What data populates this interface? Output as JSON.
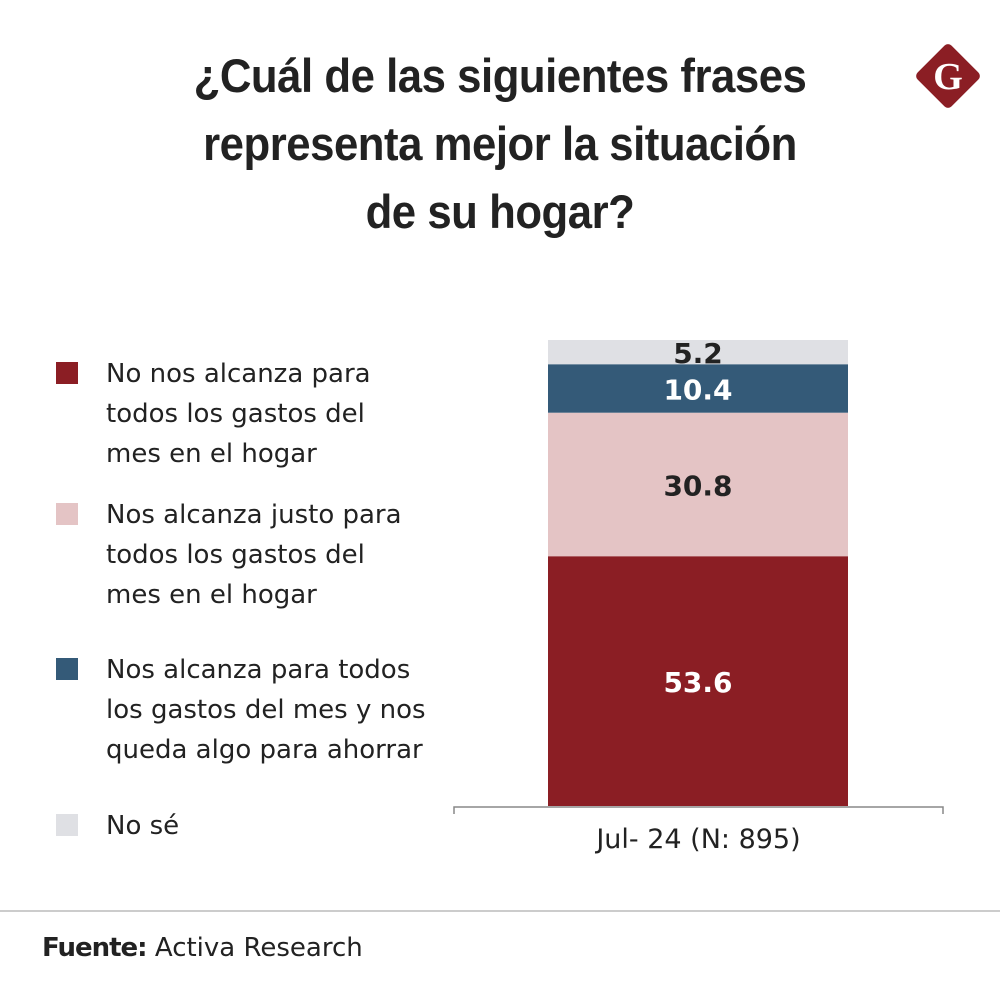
{
  "header": {
    "title_lines": [
      "¿Cuál de las siguientes frases",
      "representa mejor la situación",
      "de su hogar?"
    ],
    "logo": {
      "icon": "g-diamond-logo-icon",
      "letter": "G",
      "color": "#8b1e24"
    }
  },
  "legend": [
    {
      "lines": [
        "No nos alcanza para",
        "todos los gastos del",
        "mes en el hogar"
      ],
      "color": "#8b1e24"
    },
    {
      "lines": [
        "Nos alcanza justo para",
        "todos los gastos del",
        "mes en el hogar"
      ],
      "color": "#e4c4c5"
    },
    {
      "lines": [
        "Nos alcanza para todos",
        "los gastos del mes y nos",
        "queda algo para ahorrar"
      ],
      "color": "#345a78"
    },
    {
      "lines": [
        "No sé"
      ],
      "color": "#dfe0e4"
    }
  ],
  "chart_data": {
    "type": "bar",
    "stacked": true,
    "title": "¿Cuál de las siguientes frases representa mejor la situación de su hogar?",
    "categories": [
      "Jul- 24 (N: 895)"
    ],
    "series": [
      {
        "name": "No nos alcanza para todos los gastos del mes en el hogar",
        "values": [
          53.6
        ],
        "color": "#8b1e24",
        "label_color": "#ffffff"
      },
      {
        "name": "Nos alcanza justo para todos los gastos del mes en el hogar",
        "values": [
          30.8
        ],
        "color": "#e4c4c5",
        "label_color": "#222222"
      },
      {
        "name": "Nos alcanza para todos los gastos del mes y nos queda algo para ahorrar",
        "values": [
          10.4
        ],
        "color": "#345a78",
        "label_color": "#ffffff"
      },
      {
        "name": "No sé",
        "values": [
          5.2
        ],
        "color": "#dfe0e4",
        "label_color": "#222222"
      }
    ],
    "xlabel": "",
    "ylabel": "",
    "ylim": [
      0,
      100
    ],
    "grid": false,
    "legend_position": "left"
  },
  "footer": {
    "source_label": "Fuente:",
    "source_value": "Activa Research"
  }
}
